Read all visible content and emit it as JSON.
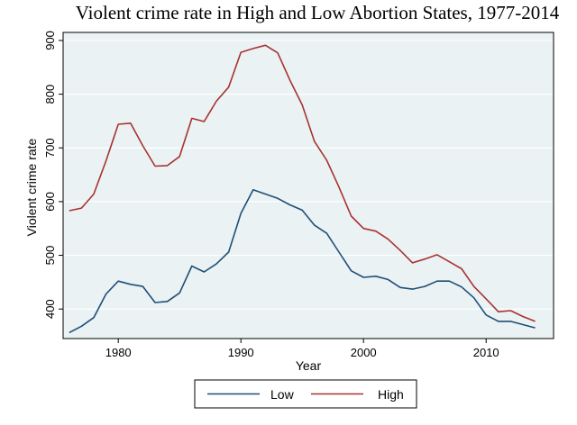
{
  "chart_data": {
    "type": "line",
    "title": "Violent crime rate in High and Low Abortion States, 1977-2014",
    "xlabel": "Year",
    "ylabel": "Violent crime rate",
    "xlim": [
      1975.5,
      2015.5
    ],
    "ylim": [
      345,
      915
    ],
    "x_ticks": [
      1980,
      1990,
      2000,
      2010
    ],
    "y_ticks": [
      400,
      500,
      600,
      700,
      800,
      900
    ],
    "grid": true,
    "legend_position": "bottom",
    "x": [
      1976,
      1977,
      1978,
      1979,
      1980,
      1981,
      1982,
      1983,
      1984,
      1985,
      1986,
      1987,
      1988,
      1989,
      1990,
      1991,
      1992,
      1993,
      1994,
      1995,
      1996,
      1997,
      1998,
      1999,
      2000,
      2001,
      2002,
      2003,
      2004,
      2005,
      2006,
      2007,
      2008,
      2009,
      2010,
      2011,
      2012,
      2013,
      2014
    ],
    "series": [
      {
        "name": "Low",
        "color": "#1f4e79",
        "values": [
          356,
          368,
          384,
          428,
          452,
          446,
          442,
          412,
          414,
          430,
          480,
          469,
          484,
          506,
          578,
          622,
          614,
          606,
          594,
          584,
          556,
          541,
          506,
          471,
          459,
          461,
          455,
          440,
          437,
          442,
          452,
          452,
          441,
          421,
          389,
          377,
          377,
          371,
          365
        ]
      },
      {
        "name": "High",
        "color": "#a83232",
        "values": [
          583,
          588,
          614,
          676,
          744,
          746,
          704,
          666,
          667,
          684,
          755,
          749,
          787,
          813,
          878,
          885,
          891,
          877,
          826,
          780,
          712,
          677,
          627,
          573,
          550,
          545,
          530,
          509,
          486,
          493,
          501,
          488,
          475,
          442,
          419,
          395,
          397,
          386,
          377
        ]
      }
    ]
  },
  "colors": {
    "plot_background": "#eaf2f3",
    "frame": "#000000",
    "grid": "#ffffff"
  }
}
